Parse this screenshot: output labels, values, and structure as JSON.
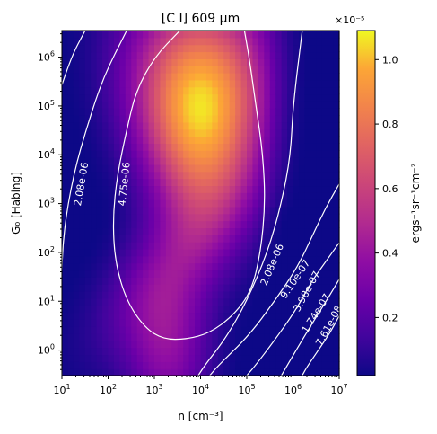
{
  "chart_data": {
    "type": "heatmap",
    "title": "[C I] 609 μm",
    "xlabel": "n [cm⁻³]",
    "ylabel": "G₀ [Habing]",
    "x_scale": "log",
    "y_scale": "log",
    "xlim": [
      10,
      10000000
    ],
    "ylim": [
      0.3,
      3500000
    ],
    "x_ticks": [
      {
        "value": 10,
        "base": "10",
        "exp": "1"
      },
      {
        "value": 100,
        "base": "10",
        "exp": "2"
      },
      {
        "value": 1000,
        "base": "10",
        "exp": "3"
      },
      {
        "value": 10000,
        "base": "10",
        "exp": "4"
      },
      {
        "value": 100000,
        "base": "10",
        "exp": "5"
      },
      {
        "value": 1000000,
        "base": "10",
        "exp": "6"
      },
      {
        "value": 10000000,
        "base": "10",
        "exp": "7"
      }
    ],
    "y_ticks": [
      {
        "value": 1,
        "base": "10",
        "exp": "0"
      },
      {
        "value": 10,
        "base": "10",
        "exp": "1"
      },
      {
        "value": 100,
        "base": "10",
        "exp": "2"
      },
      {
        "value": 1000,
        "base": "10",
        "exp": "3"
      },
      {
        "value": 10000,
        "base": "10",
        "exp": "4"
      },
      {
        "value": 100000,
        "base": "10",
        "exp": "5"
      },
      {
        "value": 1000000,
        "base": "10",
        "exp": "6"
      }
    ],
    "colormap": "plasma",
    "colorbar": {
      "label": "ergs⁻¹sr⁻¹cm⁻²",
      "multiplier": "×10⁻⁵",
      "range": [
        2e-07,
        1.09e-05
      ],
      "ticks": [
        "0.2",
        "0.4",
        "0.6",
        "0.8",
        "1.0"
      ],
      "tick_values": [
        0.2,
        0.4,
        0.6,
        0.8,
        1.0
      ]
    },
    "peak": {
      "log_n": 4.0,
      "log_g0": 5.0,
      "value": 1.07e-05
    },
    "contour_levels": [
      "4.75e-06",
      "2.08e-06",
      "9.10e-07",
      "3.98e-07",
      "1.74e-07",
      "7.61e-08"
    ],
    "contours": [
      {
        "level": "4.75e-06",
        "color": "#ffffff",
        "path": [
          [
            3.55,
            6.54
          ],
          [
            3.0,
            6.0
          ],
          [
            2.6,
            5.3
          ],
          [
            2.4,
            4.5
          ],
          [
            2.2,
            3.6
          ],
          [
            2.1,
            2.7
          ],
          [
            2.15,
            1.8
          ],
          [
            2.4,
            1.0
          ],
          [
            2.8,
            0.45
          ],
          [
            3.2,
            0.22
          ],
          [
            3.7,
            0.22
          ],
          [
            4.2,
            0.35
          ],
          [
            4.7,
            0.7
          ],
          [
            5.1,
            1.2
          ],
          [
            5.3,
            2.0
          ],
          [
            5.4,
            3.0
          ],
          [
            5.35,
            4.0
          ],
          [
            5.2,
            5.0
          ],
          [
            5.05,
            6.0
          ],
          [
            4.95,
            6.54
          ]
        ],
        "label": "4.75e-06",
        "label_at": [
          2.35,
          3.4
        ]
      },
      {
        "level": "2.08e-06",
        "color": "#ffffff",
        "path": [
          [
            2.4,
            6.54
          ],
          [
            1.9,
            5.6
          ],
          [
            1.55,
            4.6
          ],
          [
            1.25,
            3.6
          ],
          [
            1.03,
            2.4
          ],
          [
            0.98,
            1.2
          ],
          [
            1.0,
            -0.52
          ]
        ],
        "label": "2.08e-06",
        "label_at": [
          1.42,
          3.4
        ]
      },
      {
        "level": "2.08e-06",
        "color": "#ffffff",
        "path": [
          [
            6.2,
            6.54
          ],
          [
            6.0,
            5.0
          ],
          [
            5.95,
            4.0
          ],
          [
            5.75,
            3.0
          ],
          [
            5.45,
            2.0
          ],
          [
            5.0,
            1.0
          ],
          [
            4.55,
            0.25
          ],
          [
            4.1,
            -0.3
          ],
          [
            3.95,
            -0.52
          ]
        ],
        "label": "2.08e-06",
        "label_at": [
          5.55,
          1.75
        ]
      },
      {
        "level": "9.10e-07",
        "color": "#ffffff",
        "path": [
          [
            1.5,
            6.54
          ],
          [
            1.2,
            6.0
          ],
          [
            0.85,
            5.0
          ],
          [
            0.55,
            4.0
          ],
          [
            0.15,
            3.0
          ],
          [
            0.0,
            2.5
          ]
        ],
        "label": "9.10e-07",
        "label_at": [
          0.75,
          4.85
        ]
      },
      {
        "level": "9.10e-07",
        "color": "#ffffff",
        "path": [
          [
            7.0,
            3.4
          ],
          [
            6.7,
            2.9
          ],
          [
            6.45,
            2.4
          ],
          [
            6.1,
            1.7
          ],
          [
            5.6,
            1.0
          ],
          [
            5.05,
            0.3
          ],
          [
            4.4,
            -0.3
          ],
          [
            4.2,
            -0.52
          ]
        ],
        "label": "9.10e-07",
        "label_at": [
          6.05,
          1.45
        ]
      },
      {
        "level": "3.98e-07",
        "color": "#ffffff",
        "path": [
          [
            0.85,
            6.54
          ],
          [
            0.6,
            6.0
          ],
          [
            0.35,
            5.5
          ],
          [
            0.15,
            5.0
          ],
          [
            0.0,
            4.7
          ]
        ],
        "label": "3.98e-07",
        "label_at": [
          0.32,
          5.63
        ]
      },
      {
        "level": "3.98e-07",
        "color": "#ffffff",
        "path": [
          [
            7.0,
            2.2
          ],
          [
            6.7,
            1.8
          ],
          [
            6.4,
            1.4
          ],
          [
            6.05,
            0.8
          ],
          [
            5.6,
            0.2
          ],
          [
            5.2,
            -0.3
          ],
          [
            5.0,
            -0.52
          ]
        ],
        "label": "3.98e-07",
        "label_at": [
          6.3,
          1.2
        ]
      },
      {
        "level": "1.74e-07",
        "color": "#ffffff",
        "path": [
          [
            0.55,
            6.54
          ],
          [
            0.3,
            6.2
          ],
          [
            0.0,
            5.8
          ]
        ],
        "label": "",
        "label_at": null
      },
      {
        "level": "1.74e-07",
        "color": "#ffffff",
        "path": [
          [
            7.0,
            1.45
          ],
          [
            6.75,
            1.05
          ],
          [
            6.45,
            0.6
          ],
          [
            6.1,
            0.05
          ],
          [
            5.75,
            -0.52
          ]
        ],
        "label": "1.74e-07",
        "label_at": [
          6.5,
          0.75
        ]
      },
      {
        "level": "7.61e-08",
        "color": "#ffffff",
        "path": [
          [
            7.0,
            0.7
          ],
          [
            6.8,
            0.35
          ],
          [
            6.55,
            0.0
          ],
          [
            6.3,
            -0.35
          ],
          [
            6.2,
            -0.52
          ]
        ],
        "label": "7.61e-08",
        "label_at": [
          6.78,
          0.5
        ]
      }
    ]
  }
}
